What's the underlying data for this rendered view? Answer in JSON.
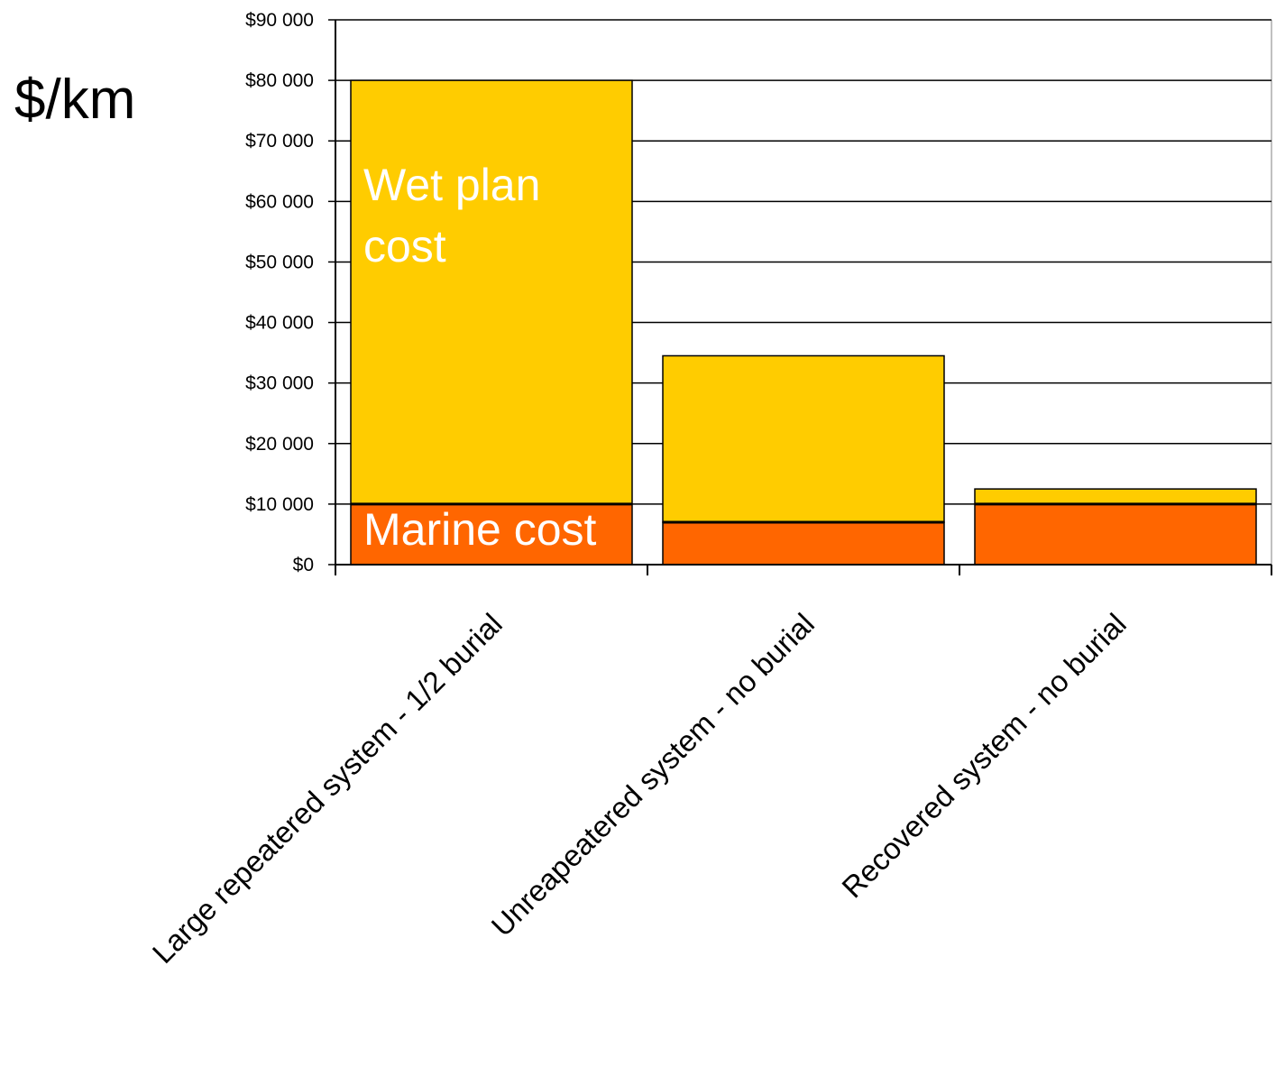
{
  "chart_data": {
    "type": "bar",
    "stacked": true,
    "unit_label": "$/km",
    "categories": [
      "Large repeatered system - 1/2 burial",
      "Unreapeatered system - no burial",
      "Recovered system - no burial"
    ],
    "series": [
      {
        "name": "Marine cost",
        "values": [
          10000,
          7000,
          10000
        ],
        "color": "#ff6600"
      },
      {
        "values": [
          70000,
          27500,
          2500
        ],
        "color": "#ffcc00"
      }
    ],
    "annotations": {
      "wet_plan_line1": "Wet plan",
      "wet_plan_line2": "cost",
      "marine": "Marine cost"
    },
    "ylim": [
      0,
      90000
    ],
    "yticks": [
      0,
      10000,
      20000,
      30000,
      40000,
      50000,
      60000,
      70000,
      80000,
      90000
    ],
    "ytick_labels": [
      "$0",
      "$10 000",
      "$20 000",
      "$30 000",
      "$40 000",
      "$50 000",
      "$60 000",
      "$70 000",
      "$80 000",
      "$90 000"
    ],
    "grid": true,
    "legend": "none",
    "colors": {
      "marine": "#ff6600",
      "wet_plan": "#ffcc00",
      "grid": "#000000",
      "axis": "#000000"
    }
  }
}
